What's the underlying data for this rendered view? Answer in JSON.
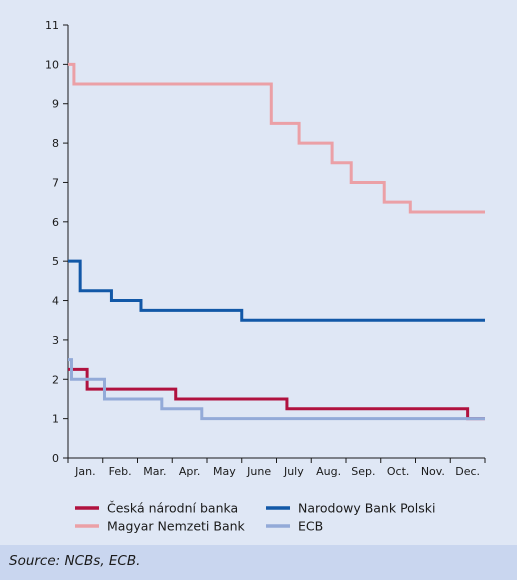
{
  "chart_data": {
    "type": "line",
    "step": true,
    "categories": [
      "Jan.",
      "Feb.",
      "Mar.",
      "Apr.",
      "May",
      "June",
      "July",
      "Aug.",
      "Sep.",
      "Oct.",
      "Nov.",
      "Dec."
    ],
    "ylim": [
      0,
      11
    ],
    "yticks": [
      0,
      1,
      2,
      3,
      4,
      5,
      6,
      7,
      8,
      9,
      10,
      11
    ],
    "xlim": [
      0,
      12
    ],
    "title": "",
    "xlabel": "",
    "ylabel": "",
    "grid": false,
    "legend_position": "bottom",
    "series": [
      {
        "name": "Česká národní banka",
        "color": "#b0123f",
        "points": [
          [
            0,
            2.25
          ],
          [
            0.55,
            2.25
          ],
          [
            0.55,
            1.75
          ],
          [
            3.1,
            1.75
          ],
          [
            3.1,
            1.5
          ],
          [
            6.3,
            1.5
          ],
          [
            6.3,
            1.25
          ],
          [
            11.5,
            1.25
          ],
          [
            11.5,
            1.0
          ],
          [
            12,
            1.0
          ]
        ]
      },
      {
        "name": "Magyar Nemzeti Bank",
        "color": "#eba0a6",
        "points": [
          [
            0,
            10.0
          ],
          [
            0.17,
            10.0
          ],
          [
            0.17,
            9.5
          ],
          [
            5.85,
            9.5
          ],
          [
            5.85,
            8.5
          ],
          [
            6.65,
            8.5
          ],
          [
            6.65,
            8.0
          ],
          [
            7.6,
            8.0
          ],
          [
            7.6,
            7.5
          ],
          [
            8.15,
            7.5
          ],
          [
            8.15,
            7.0
          ],
          [
            9.1,
            7.0
          ],
          [
            9.1,
            6.5
          ],
          [
            9.85,
            6.5
          ],
          [
            9.85,
            6.25
          ],
          [
            12,
            6.25
          ]
        ]
      },
      {
        "name": "Narodowy Bank Polski",
        "color": "#1258a7",
        "points": [
          [
            0,
            5.0
          ],
          [
            0.35,
            5.0
          ],
          [
            0.35,
            4.25
          ],
          [
            1.25,
            4.25
          ],
          [
            1.25,
            4.0
          ],
          [
            2.1,
            4.0
          ],
          [
            2.1,
            3.75
          ],
          [
            5.0,
            3.75
          ],
          [
            5.0,
            3.5
          ],
          [
            12,
            3.5
          ]
        ]
      },
      {
        "name": "ECB",
        "color": "#93aad8",
        "points": [
          [
            0,
            2.5
          ],
          [
            0.1,
            2.5
          ],
          [
            0.1,
            2.0
          ],
          [
            1.05,
            2.0
          ],
          [
            1.05,
            1.5
          ],
          [
            2.7,
            1.5
          ],
          [
            2.7,
            1.25
          ],
          [
            3.85,
            1.25
          ],
          [
            3.85,
            1.0
          ],
          [
            12,
            1.0
          ]
        ]
      }
    ]
  },
  "source": "Source: NCBs, ECB."
}
